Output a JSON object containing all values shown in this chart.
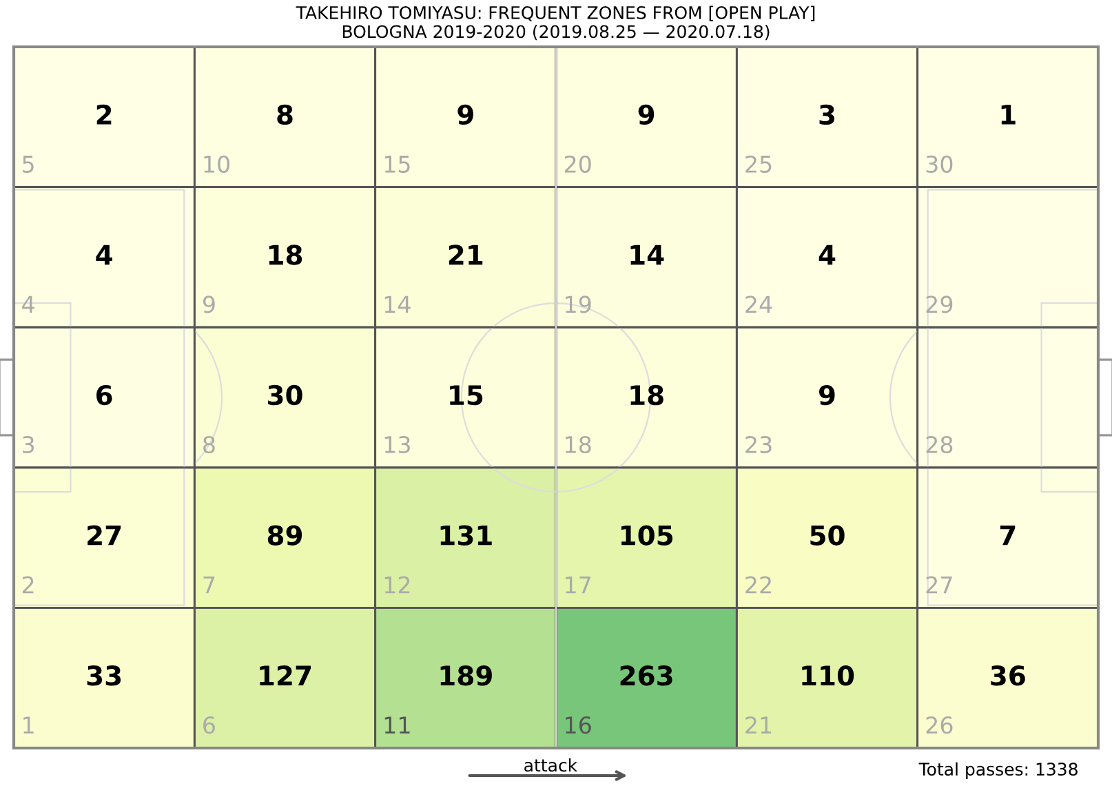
{
  "chart_data": {
    "type": "heatmap",
    "title": "TAKEHIRO TOMIYASU: FREQUENT ZONES FROM [OPEN PLAY]",
    "subtitle": "BOLOGNA 2019-2020 (2019.08.25 — 2020.07.18)",
    "categories": [
      null,
      null,
      null,
      null,
      null,
      null
    ],
    "y_categories": [
      null,
      null,
      null,
      null,
      null
    ],
    "cells": [
      [
        2,
        8,
        9,
        9,
        3,
        1
      ],
      [
        4,
        18,
        21,
        14,
        4,
        null
      ],
      [
        6,
        30,
        15,
        18,
        9,
        null
      ],
      [
        27,
        89,
        131,
        105,
        50,
        7
      ],
      [
        33,
        127,
        189,
        263,
        110,
        36
      ]
    ],
    "data_labels": true,
    "annotations": [
      "5",
      "10",
      "15",
      "20",
      "25",
      "30",
      "4",
      "9",
      "14",
      "19",
      "24",
      "29",
      "3",
      "8",
      "13",
      "18",
      "23",
      "28",
      "2",
      "7",
      "12",
      "17",
      "22",
      "27",
      "1",
      "6",
      "11",
      "16",
      "21",
      "26",
      "attack",
      "Total passes: 1338"
    ]
  }
}
